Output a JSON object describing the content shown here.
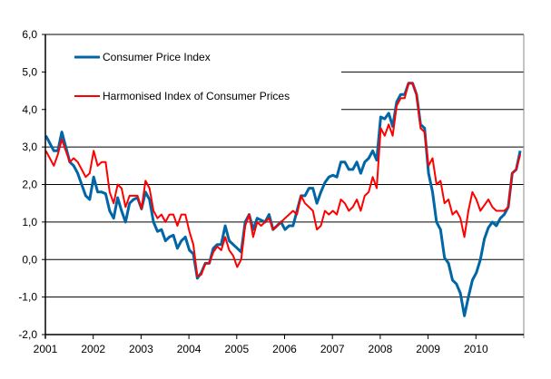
{
  "chart_data": {
    "type": "line",
    "title": "",
    "xlabel": "",
    "ylabel": "",
    "ylim": [
      -2.0,
      6.0
    ],
    "yticks": [
      "-2,0",
      "-1,0",
      "0,0",
      "1,0",
      "2,0",
      "3,0",
      "4,0",
      "5,0",
      "6,0"
    ],
    "ytick_values": [
      -2,
      -1,
      0,
      1,
      2,
      3,
      4,
      5,
      6
    ],
    "xticks": [
      "2001",
      "2002",
      "2003",
      "2004",
      "2005",
      "2006",
      "2007",
      "2008",
      "2009",
      "2010"
    ],
    "x_start": "2001-01",
    "x_frequency": "monthly",
    "grid": "horizontal",
    "legend_position": "top-left",
    "series": [
      {
        "name": "Consumer Price Index",
        "color": "#0066A6",
        "values": [
          3.3,
          3.1,
          2.9,
          2.9,
          3.4,
          3.0,
          2.6,
          2.5,
          2.3,
          2.0,
          1.7,
          1.6,
          2.2,
          1.8,
          1.8,
          1.75,
          1.3,
          1.1,
          1.65,
          1.3,
          1.0,
          1.5,
          1.6,
          1.65,
          1.35,
          1.8,
          1.6,
          1.0,
          0.75,
          0.8,
          0.5,
          0.6,
          0.65,
          0.3,
          0.5,
          0.6,
          0.25,
          0.15,
          -0.5,
          -0.35,
          -0.1,
          -0.1,
          0.3,
          0.4,
          0.4,
          0.9,
          0.5,
          0.4,
          0.3,
          0.2,
          1.0,
          1.2,
          0.8,
          1.1,
          1.05,
          1.0,
          1.2,
          0.8,
          0.9,
          1.0,
          0.8,
          0.9,
          0.9,
          1.3,
          1.7,
          1.7,
          1.9,
          1.9,
          1.5,
          1.8,
          2.05,
          2.2,
          2.25,
          2.2,
          2.6,
          2.6,
          2.4,
          2.4,
          2.6,
          2.3,
          2.6,
          2.7,
          2.9,
          2.65,
          3.8,
          3.75,
          3.9,
          3.55,
          4.2,
          4.4,
          4.4,
          4.7,
          4.7,
          4.4,
          3.6,
          3.5,
          2.3,
          1.8,
          1.0,
          0.8,
          0.05,
          -0.1,
          -0.55,
          -0.65,
          -0.9,
          -1.5,
          -1.0,
          -0.55,
          -0.35,
          0.0,
          0.55,
          0.85,
          1.0,
          0.9,
          1.1,
          1.2,
          1.4,
          2.3,
          2.4,
          2.9
        ]
      },
      {
        "name": "Harmonised Index of Consumer Prices",
        "color": "#FF0000",
        "values": [
          2.9,
          2.7,
          2.5,
          2.8,
          3.2,
          2.9,
          2.6,
          2.7,
          2.6,
          2.4,
          2.2,
          2.3,
          2.9,
          2.5,
          2.6,
          2.6,
          1.8,
          1.5,
          2.0,
          1.9,
          1.4,
          1.7,
          1.7,
          1.7,
          1.35,
          2.1,
          1.9,
          1.3,
          1.1,
          1.2,
          1.0,
          1.2,
          1.2,
          0.9,
          1.2,
          1.2,
          0.75,
          0.4,
          -0.45,
          -0.4,
          -0.1,
          -0.1,
          0.2,
          0.35,
          0.25,
          0.6,
          0.25,
          0.1,
          -0.2,
          0.0,
          0.9,
          1.2,
          0.6,
          1.0,
          0.9,
          1.0,
          1.1,
          0.8,
          0.9,
          1.0,
          1.1,
          1.2,
          1.3,
          1.2,
          1.7,
          1.5,
          1.4,
          1.3,
          0.8,
          0.9,
          1.3,
          1.2,
          1.3,
          1.2,
          1.6,
          1.5,
          1.3,
          1.4,
          1.6,
          1.3,
          1.7,
          1.8,
          2.2,
          1.9,
          3.5,
          3.3,
          3.6,
          3.3,
          4.1,
          4.3,
          4.3,
          4.7,
          4.7,
          4.4,
          3.5,
          3.4,
          2.5,
          2.7,
          2.0,
          2.1,
          1.5,
          1.6,
          1.2,
          1.3,
          1.1,
          0.6,
          1.3,
          1.8,
          1.6,
          1.3,
          1.45,
          1.6,
          1.4,
          1.3,
          1.3,
          1.3,
          1.4,
          2.3,
          2.4,
          2.8
        ]
      }
    ]
  }
}
